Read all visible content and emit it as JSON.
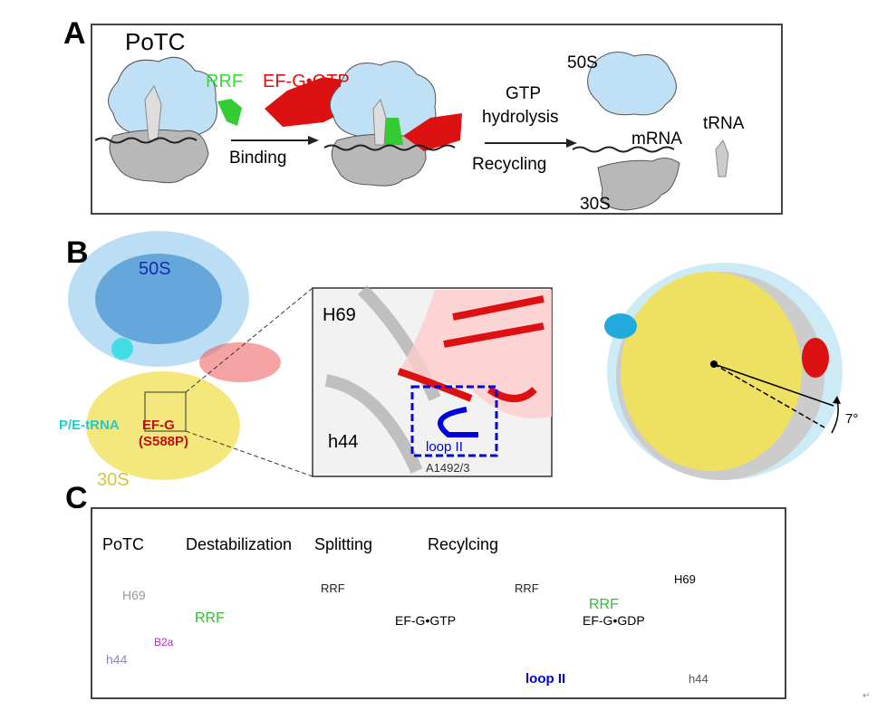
{
  "colors": {
    "large_subunit": "#bfe0f5",
    "small_subunit": "#b8b8b8",
    "rrf": "#33cc33",
    "efg": "#dd1111",
    "loop_ii": "#0000dd",
    "b2a": "#cc22cc",
    "h44": "#8888bb",
    "yellow_30s": "#f0e050",
    "cyan_trna": "#22bbdd"
  },
  "panel_a": {
    "label": "A",
    "potc": "PoTC",
    "rrf": "RRF",
    "efg_gtp": "EF-G•GTP",
    "binding": "Binding",
    "gtp": "GTP",
    "hydrolysis": "hydrolysis",
    "recycling": "Recycling",
    "s50": "50S",
    "mrna": "mRNA",
    "trna": "tRNA",
    "s30": "30S"
  },
  "panel_b": {
    "label": "B",
    "s50": "50S",
    "pe_trna": "P/E-tRNA",
    "efg": "EF-G",
    "mutation": "(S588P)",
    "s30": "30S",
    "h69": "H69",
    "h44": "h44",
    "loop_ii": "loop II",
    "a1492": "A1492/3",
    "angle": "7°"
  },
  "panel_c": {
    "label": "C",
    "stages": [
      "PoTC",
      "Destabilization",
      "Splitting",
      "Recylcing"
    ],
    "h69": "H69",
    "b2a": "B2a",
    "h44": "h44",
    "rrf": "RRF",
    "efg_gtp": "EF-G•GTP",
    "efg_gdp": "EF-G•GDP",
    "loop_ii": "loop II"
  },
  "return_mark": "↵"
}
